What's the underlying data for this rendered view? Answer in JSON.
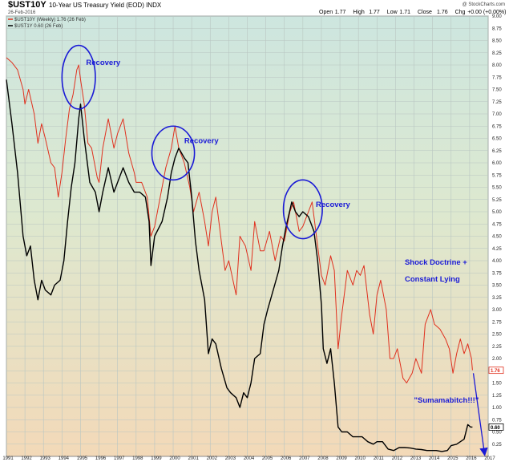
{
  "header": {
    "symbol": "$UST10Y",
    "description": "10-Year US Treasury Yield (EOD) INDX",
    "date": "26-Feb-2016",
    "watermark": "@ StockCharts.com",
    "ohlc": [
      {
        "label": "Open",
        "value": "1.77"
      },
      {
        "label": "High",
        "value": "1.77"
      },
      {
        "label": "Low",
        "value": "1.71"
      },
      {
        "label": "Close",
        "value": "1.76"
      },
      {
        "label": "Chg",
        "value": "+0.00 (+0.00%)"
      }
    ]
  },
  "chart_data": {
    "type": "line",
    "x_range": [
      1991.0,
      2017.0
    ],
    "ylim": [
      0.0,
      9.0
    ],
    "grid": true,
    "legend_position": "top-left",
    "x_tick_labels": [
      "1991",
      "1992",
      "1993",
      "1994",
      "1995",
      "1996",
      "1997",
      "1998",
      "1999",
      "2000",
      "2001",
      "2002",
      "2003",
      "2004",
      "2005",
      "2006",
      "2007",
      "2008",
      "2009",
      "2010",
      "2011",
      "2012",
      "2013",
      "2014",
      "2015",
      "2016",
      "2017"
    ],
    "y_tick_labels": [
      "0.25",
      "0.50",
      "0.75",
      "1.00",
      "1.25",
      "1.50",
      "1.75",
      "2.00",
      "2.25",
      "2.50",
      "2.75",
      "3.00",
      "3.25",
      "3.50",
      "3.75",
      "4.00",
      "4.25",
      "4.50",
      "4.75",
      "5.00",
      "5.25",
      "5.50",
      "5.75",
      "6.00",
      "6.25",
      "6.50",
      "6.75",
      "7.00",
      "7.25",
      "7.50",
      "7.75",
      "8.00",
      "8.25",
      "8.50",
      "8.75",
      "9.00"
    ],
    "series": [
      {
        "name": "$UST10Y (Weekly) 1.76 (26 Feb)",
        "color": "#e0301e",
        "last_value_label": "1.76",
        "points": [
          [
            1991.0,
            8.15
          ],
          [
            1991.3,
            8.05
          ],
          [
            1991.6,
            7.9
          ],
          [
            1991.9,
            7.5
          ],
          [
            1992.0,
            7.2
          ],
          [
            1992.2,
            7.5
          ],
          [
            1992.5,
            7.0
          ],
          [
            1992.7,
            6.4
          ],
          [
            1992.9,
            6.8
          ],
          [
            1993.1,
            6.5
          ],
          [
            1993.4,
            6.0
          ],
          [
            1993.6,
            5.9
          ],
          [
            1993.8,
            5.3
          ],
          [
            1994.0,
            5.8
          ],
          [
            1994.2,
            6.5
          ],
          [
            1994.4,
            7.1
          ],
          [
            1994.6,
            7.4
          ],
          [
            1994.8,
            7.9
          ],
          [
            1994.9,
            8.0
          ],
          [
            1995.0,
            7.7
          ],
          [
            1995.2,
            7.2
          ],
          [
            1995.4,
            6.4
          ],
          [
            1995.6,
            6.3
          ],
          [
            1995.9,
            5.7
          ],
          [
            1996.0,
            5.6
          ],
          [
            1996.2,
            6.3
          ],
          [
            1996.5,
            6.9
          ],
          [
            1996.8,
            6.3
          ],
          [
            1997.0,
            6.6
          ],
          [
            1997.3,
            6.9
          ],
          [
            1997.6,
            6.2
          ],
          [
            1997.9,
            5.8
          ],
          [
            1998.0,
            5.6
          ],
          [
            1998.3,
            5.6
          ],
          [
            1998.6,
            5.3
          ],
          [
            1998.8,
            4.5
          ],
          [
            1999.0,
            4.7
          ],
          [
            1999.3,
            5.3
          ],
          [
            1999.6,
            5.9
          ],
          [
            1999.9,
            6.3
          ],
          [
            2000.1,
            6.75
          ],
          [
            2000.3,
            6.3
          ],
          [
            2000.6,
            6.0
          ],
          [
            2000.9,
            5.5
          ],
          [
            2001.1,
            5.0
          ],
          [
            2001.4,
            5.4
          ],
          [
            2001.7,
            4.8
          ],
          [
            2001.9,
            4.3
          ],
          [
            2002.1,
            5.0
          ],
          [
            2002.3,
            5.3
          ],
          [
            2002.6,
            4.4
          ],
          [
            2002.8,
            3.8
          ],
          [
            2003.0,
            4.0
          ],
          [
            2003.4,
            3.3
          ],
          [
            2003.6,
            4.5
          ],
          [
            2003.9,
            4.3
          ],
          [
            2004.2,
            3.8
          ],
          [
            2004.4,
            4.8
          ],
          [
            2004.7,
            4.2
          ],
          [
            2004.9,
            4.2
          ],
          [
            2005.2,
            4.6
          ],
          [
            2005.5,
            4.0
          ],
          [
            2005.8,
            4.5
          ],
          [
            2006.0,
            4.4
          ],
          [
            2006.3,
            5.0
          ],
          [
            2006.5,
            5.2
          ],
          [
            2006.8,
            4.6
          ],
          [
            2007.0,
            4.7
          ],
          [
            2007.3,
            5.0
          ],
          [
            2007.5,
            5.2
          ],
          [
            2007.8,
            4.3
          ],
          [
            2008.0,
            3.7
          ],
          [
            2008.2,
            3.5
          ],
          [
            2008.5,
            4.1
          ],
          [
            2008.7,
            3.8
          ],
          [
            2008.9,
            2.2
          ],
          [
            2009.1,
            2.9
          ],
          [
            2009.4,
            3.8
          ],
          [
            2009.7,
            3.5
          ],
          [
            2009.9,
            3.8
          ],
          [
            2010.1,
            3.7
          ],
          [
            2010.3,
            3.9
          ],
          [
            2010.6,
            2.9
          ],
          [
            2010.8,
            2.5
          ],
          [
            2011.0,
            3.3
          ],
          [
            2011.2,
            3.6
          ],
          [
            2011.5,
            3.0
          ],
          [
            2011.7,
            2.0
          ],
          [
            2011.9,
            2.0
          ],
          [
            2012.1,
            2.2
          ],
          [
            2012.4,
            1.6
          ],
          [
            2012.6,
            1.5
          ],
          [
            2012.9,
            1.7
          ],
          [
            2013.1,
            2.0
          ],
          [
            2013.4,
            1.7
          ],
          [
            2013.6,
            2.7
          ],
          [
            2013.8,
            2.9
          ],
          [
            2013.9,
            3.0
          ],
          [
            2014.1,
            2.7
          ],
          [
            2014.4,
            2.6
          ],
          [
            2014.7,
            2.4
          ],
          [
            2014.9,
            2.2
          ],
          [
            2015.1,
            1.7
          ],
          [
            2015.3,
            2.1
          ],
          [
            2015.5,
            2.4
          ],
          [
            2015.7,
            2.1
          ],
          [
            2015.9,
            2.3
          ],
          [
            2016.1,
            2.0
          ],
          [
            2016.15,
            1.76
          ]
        ]
      },
      {
        "name": "$UST1Y 0.60 (26 Feb)",
        "color": "#000000",
        "last_value_label": "0.60",
        "points": [
          [
            1991.0,
            7.7
          ],
          [
            1991.3,
            6.8
          ],
          [
            1991.6,
            5.8
          ],
          [
            1991.9,
            4.5
          ],
          [
            1992.1,
            4.1
          ],
          [
            1992.3,
            4.3
          ],
          [
            1992.5,
            3.6
          ],
          [
            1992.7,
            3.2
          ],
          [
            1992.9,
            3.6
          ],
          [
            1993.1,
            3.4
          ],
          [
            1993.4,
            3.3
          ],
          [
            1993.6,
            3.5
          ],
          [
            1993.9,
            3.6
          ],
          [
            1994.1,
            4.0
          ],
          [
            1994.3,
            4.8
          ],
          [
            1994.5,
            5.5
          ],
          [
            1994.7,
            6.0
          ],
          [
            1994.9,
            6.9
          ],
          [
            1995.0,
            7.2
          ],
          [
            1995.2,
            6.5
          ],
          [
            1995.5,
            5.6
          ],
          [
            1995.8,
            5.4
          ],
          [
            1996.0,
            5.0
          ],
          [
            1996.2,
            5.4
          ],
          [
            1996.5,
            5.9
          ],
          [
            1996.8,
            5.4
          ],
          [
            1997.0,
            5.6
          ],
          [
            1997.3,
            5.9
          ],
          [
            1997.6,
            5.6
          ],
          [
            1997.9,
            5.4
          ],
          [
            1998.2,
            5.4
          ],
          [
            1998.5,
            5.3
          ],
          [
            1998.7,
            4.8
          ],
          [
            1998.8,
            3.9
          ],
          [
            1999.0,
            4.5
          ],
          [
            1999.4,
            4.8
          ],
          [
            1999.7,
            5.3
          ],
          [
            1999.9,
            5.8
          ],
          [
            2000.1,
            6.1
          ],
          [
            2000.3,
            6.3
          ],
          [
            2000.6,
            6.1
          ],
          [
            2000.8,
            6.0
          ],
          [
            2001.0,
            5.3
          ],
          [
            2001.2,
            4.4
          ],
          [
            2001.4,
            3.8
          ],
          [
            2001.7,
            3.2
          ],
          [
            2001.9,
            2.1
          ],
          [
            2002.1,
            2.4
          ],
          [
            2002.3,
            2.3
          ],
          [
            2002.6,
            1.8
          ],
          [
            2002.9,
            1.4
          ],
          [
            2003.1,
            1.3
          ],
          [
            2003.4,
            1.2
          ],
          [
            2003.6,
            1.0
          ],
          [
            2003.8,
            1.3
          ],
          [
            2004.0,
            1.2
          ],
          [
            2004.2,
            1.5
          ],
          [
            2004.4,
            2.0
          ],
          [
            2004.7,
            2.1
          ],
          [
            2004.9,
            2.7
          ],
          [
            2005.1,
            3.0
          ],
          [
            2005.4,
            3.4
          ],
          [
            2005.7,
            3.8
          ],
          [
            2005.9,
            4.3
          ],
          [
            2006.1,
            4.7
          ],
          [
            2006.4,
            5.2
          ],
          [
            2006.6,
            5.0
          ],
          [
            2006.8,
            4.9
          ],
          [
            2007.0,
            5.0
          ],
          [
            2007.3,
            4.9
          ],
          [
            2007.6,
            4.6
          ],
          [
            2007.8,
            4.0
          ],
          [
            2008.0,
            3.1
          ],
          [
            2008.1,
            2.2
          ],
          [
            2008.3,
            1.9
          ],
          [
            2008.5,
            2.2
          ],
          [
            2008.7,
            1.5
          ],
          [
            2008.9,
            0.6
          ],
          [
            2009.1,
            0.5
          ],
          [
            2009.4,
            0.5
          ],
          [
            2009.7,
            0.4
          ],
          [
            2009.9,
            0.4
          ],
          [
            2010.2,
            0.4
          ],
          [
            2010.5,
            0.3
          ],
          [
            2010.8,
            0.25
          ],
          [
            2011.0,
            0.3
          ],
          [
            2011.3,
            0.3
          ],
          [
            2011.6,
            0.15
          ],
          [
            2011.9,
            0.12
          ],
          [
            2012.2,
            0.18
          ],
          [
            2012.5,
            0.18
          ],
          [
            2012.8,
            0.17
          ],
          [
            2013.1,
            0.15
          ],
          [
            2013.4,
            0.14
          ],
          [
            2013.7,
            0.12
          ],
          [
            2013.9,
            0.12
          ],
          [
            2014.2,
            0.12
          ],
          [
            2014.5,
            0.1
          ],
          [
            2014.8,
            0.12
          ],
          [
            2015.0,
            0.22
          ],
          [
            2015.3,
            0.25
          ],
          [
            2015.5,
            0.3
          ],
          [
            2015.7,
            0.35
          ],
          [
            2015.9,
            0.65
          ],
          [
            2016.05,
            0.6
          ],
          [
            2016.15,
            0.6
          ]
        ]
      }
    ],
    "annotations": [
      {
        "type": "ellipse",
        "cx": 1994.9,
        "cy": 7.75,
        "rx": 0.9,
        "ry": 0.65,
        "color": "#1a1ad6"
      },
      {
        "type": "text",
        "text": "Recovery",
        "x": 1995.3,
        "y": 8.0,
        "color": "#1a1ad6"
      },
      {
        "type": "ellipse",
        "cx": 2000.0,
        "cy": 6.2,
        "rx": 1.15,
        "ry": 0.55,
        "color": "#1a1ad6"
      },
      {
        "type": "text",
        "text": "Recovery",
        "x": 2000.6,
        "y": 6.4,
        "color": "#1a1ad6"
      },
      {
        "type": "ellipse",
        "cx": 2007.0,
        "cy": 5.05,
        "rx": 1.05,
        "ry": 0.6,
        "color": "#1a1ad6"
      },
      {
        "type": "text",
        "text": "Recovery",
        "x": 2007.7,
        "y": 5.1,
        "color": "#1a1ad6"
      },
      {
        "type": "text",
        "text": "Shock Doctrine +",
        "x": 2012.5,
        "y": 3.92,
        "color": "#1a1ad6"
      },
      {
        "type": "text",
        "text": "Constant Lying",
        "x": 2012.5,
        "y": 3.57,
        "color": "#1a1ad6"
      },
      {
        "type": "text",
        "text": "\"Sumamabitch!!!\"",
        "x": 2013.0,
        "y": 1.1,
        "color": "#1a1ad6"
      },
      {
        "type": "arrow",
        "from": [
          2016.2,
          1.7
        ],
        "to": [
          2016.8,
          0.0
        ],
        "color": "#1a1ad6"
      }
    ]
  }
}
